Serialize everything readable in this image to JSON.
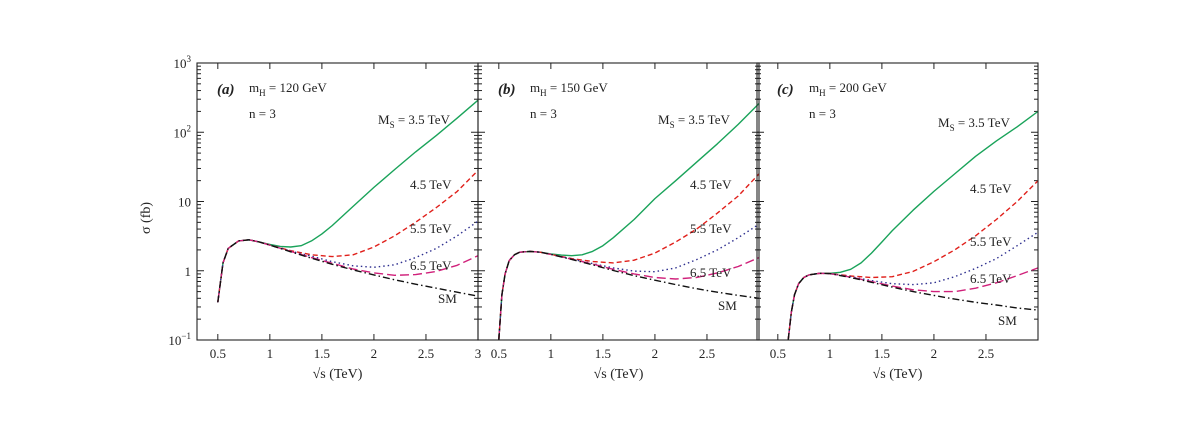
{
  "figure": {
    "ylabel": "σ (fb)",
    "xlabel": "√s (TeV)",
    "x_ticks": [
      "0.5",
      "1",
      "1.5",
      "2",
      "2.5",
      "3"
    ],
    "y_ticks": [
      {
        "base": "10",
        "exp": "−1"
      },
      {
        "base": "1",
        "exp": ""
      },
      {
        "base": "10",
        "exp": ""
      },
      {
        "base": "10",
        "exp": "2"
      },
      {
        "base": "10",
        "exp": "3"
      }
    ]
  },
  "colors": {
    "ms35": "#1aa35a",
    "ms45": "#e0201b",
    "ms55": "#2e2f8f",
    "ms65": "#d0207a",
    "sm": "#111111"
  },
  "chart_data": [
    {
      "type": "line",
      "panel": "(a)",
      "param1": "m",
      "param1_sub": "H",
      "param1_val": " = 120 GeV",
      "param2": "n = 3",
      "xlim": [
        0.3,
        3.0
      ],
      "ylim": [
        0.1,
        1000
      ],
      "yscale": "log",
      "labels": {
        "ms_prefix": "M",
        "ms_sub": "S",
        "ms_val": " = 3.5 TeV",
        "l45": "4.5 TeV",
        "l55": "5.5 TeV",
        "l65": "6.5 TeV",
        "lsm": "SM"
      },
      "series": [
        {
          "name": "M_S = 3.5 TeV",
          "style": "solid",
          "x": [
            0.5,
            0.55,
            0.6,
            0.7,
            0.8,
            0.9,
            1.0,
            1.1,
            1.2,
            1.3,
            1.4,
            1.5,
            1.6,
            1.8,
            2.0,
            2.2,
            2.4,
            2.6,
            2.8,
            3.0
          ],
          "y": [
            0.35,
            1.3,
            2.1,
            2.7,
            2.8,
            2.6,
            2.4,
            2.25,
            2.2,
            2.3,
            2.7,
            3.4,
            4.5,
            8.5,
            16,
            29,
            52,
            90,
            160,
            290
          ]
        },
        {
          "name": "4.5 TeV",
          "style": "dashed",
          "x": [
            0.5,
            0.55,
            0.6,
            0.7,
            0.8,
            0.9,
            1.0,
            1.2,
            1.4,
            1.6,
            1.8,
            2.0,
            2.2,
            2.4,
            2.6,
            2.8,
            3.0
          ],
          "y": [
            0.35,
            1.3,
            2.1,
            2.7,
            2.8,
            2.6,
            2.35,
            1.95,
            1.7,
            1.6,
            1.7,
            2.2,
            3.2,
            5.0,
            8.2,
            14,
            28
          ]
        },
        {
          "name": "5.5 TeV",
          "style": "dotted",
          "x": [
            0.5,
            0.55,
            0.6,
            0.7,
            0.8,
            0.9,
            1.0,
            1.2,
            1.4,
            1.6,
            1.8,
            2.0,
            2.2,
            2.4,
            2.6,
            2.8,
            3.0
          ],
          "y": [
            0.35,
            1.3,
            2.1,
            2.7,
            2.8,
            2.6,
            2.35,
            1.92,
            1.62,
            1.35,
            1.18,
            1.12,
            1.22,
            1.55,
            2.1,
            3.2,
            5.2
          ]
        },
        {
          "name": "6.5 TeV",
          "style": "longdash",
          "x": [
            0.5,
            0.55,
            0.6,
            0.7,
            0.8,
            0.9,
            1.0,
            1.2,
            1.4,
            1.6,
            1.8,
            2.0,
            2.2,
            2.4,
            2.6,
            2.8,
            3.0
          ],
          "y": [
            0.35,
            1.3,
            2.1,
            2.7,
            2.8,
            2.6,
            2.35,
            1.9,
            1.55,
            1.28,
            1.06,
            0.93,
            0.86,
            0.88,
            0.98,
            1.2,
            1.65
          ]
        },
        {
          "name": "SM",
          "style": "dashdot",
          "x": [
            0.5,
            0.55,
            0.6,
            0.7,
            0.8,
            0.9,
            1.0,
            1.2,
            1.4,
            1.6,
            1.8,
            2.0,
            2.2,
            2.4,
            2.6,
            2.8,
            3.0
          ],
          "y": [
            0.35,
            1.3,
            2.1,
            2.7,
            2.8,
            2.6,
            2.35,
            1.88,
            1.52,
            1.24,
            1.03,
            0.87,
            0.74,
            0.64,
            0.56,
            0.49,
            0.43
          ]
        }
      ]
    },
    {
      "type": "line",
      "panel": "(b)",
      "param1": "m",
      "param1_sub": "H",
      "param1_val": " = 150 GeV",
      "param2": "n = 3",
      "xlim": [
        0.3,
        3.0
      ],
      "ylim": [
        0.1,
        1000
      ],
      "yscale": "log",
      "labels": {
        "ms_prefix": "M",
        "ms_sub": "S",
        "ms_val": " = 3.5 TeV",
        "l45": "4.5 TeV",
        "l55": "5.5 TeV",
        "l65": "6.5 TeV",
        "lsm": "SM"
      },
      "series": [
        {
          "name": "M_S = 3.5 TeV",
          "style": "solid",
          "x": [
            0.5,
            0.53,
            0.56,
            0.6,
            0.65,
            0.7,
            0.8,
            0.9,
            1.0,
            1.1,
            1.2,
            1.3,
            1.4,
            1.5,
            1.6,
            1.8,
            2.0,
            2.2,
            2.4,
            2.6,
            2.8,
            3.0
          ],
          "y": [
            0.1,
            0.45,
            0.9,
            1.4,
            1.7,
            1.85,
            1.9,
            1.85,
            1.75,
            1.68,
            1.65,
            1.7,
            1.9,
            2.3,
            3.0,
            5.5,
            11,
            20,
            37,
            68,
            130,
            260
          ]
        },
        {
          "name": "4.5 TeV",
          "style": "dashed",
          "x": [
            0.5,
            0.53,
            0.56,
            0.6,
            0.65,
            0.7,
            0.8,
            0.9,
            1.0,
            1.2,
            1.4,
            1.6,
            1.8,
            2.0,
            2.2,
            2.4,
            2.6,
            2.8,
            3.0
          ],
          "y": [
            0.1,
            0.45,
            0.9,
            1.4,
            1.7,
            1.85,
            1.9,
            1.85,
            1.72,
            1.5,
            1.36,
            1.3,
            1.42,
            1.8,
            2.6,
            4.0,
            6.8,
            12,
            25
          ]
        },
        {
          "name": "5.5 TeV",
          "style": "dotted",
          "x": [
            0.5,
            0.53,
            0.56,
            0.6,
            0.65,
            0.7,
            0.8,
            0.9,
            1.0,
            1.2,
            1.4,
            1.6,
            1.8,
            2.0,
            2.2,
            2.4,
            2.6,
            2.8,
            3.0
          ],
          "y": [
            0.1,
            0.45,
            0.9,
            1.4,
            1.7,
            1.85,
            1.9,
            1.85,
            1.72,
            1.48,
            1.27,
            1.1,
            0.99,
            0.97,
            1.1,
            1.45,
            2.0,
            3.0,
            4.7
          ]
        },
        {
          "name": "6.5 TeV",
          "style": "longdash",
          "x": [
            0.5,
            0.53,
            0.56,
            0.6,
            0.65,
            0.7,
            0.8,
            0.9,
            1.0,
            1.2,
            1.4,
            1.6,
            1.8,
            2.0,
            2.2,
            2.4,
            2.6,
            2.8,
            3.0
          ],
          "y": [
            0.1,
            0.45,
            0.9,
            1.4,
            1.7,
            1.85,
            1.9,
            1.85,
            1.72,
            1.47,
            1.25,
            1.05,
            0.9,
            0.8,
            0.76,
            0.8,
            0.93,
            1.15,
            1.55
          ]
        },
        {
          "name": "SM",
          "style": "dashdot",
          "x": [
            0.5,
            0.53,
            0.56,
            0.6,
            0.65,
            0.7,
            0.8,
            0.9,
            1.0,
            1.2,
            1.4,
            1.6,
            1.8,
            2.0,
            2.2,
            2.4,
            2.6,
            2.8,
            3.0
          ],
          "y": [
            0.1,
            0.45,
            0.9,
            1.4,
            1.7,
            1.85,
            1.9,
            1.85,
            1.72,
            1.46,
            1.22,
            1.01,
            0.85,
            0.73,
            0.63,
            0.55,
            0.49,
            0.44,
            0.4
          ]
        }
      ]
    },
    {
      "type": "line",
      "panel": "(c)",
      "param1": "m",
      "param1_sub": "H",
      "param1_val": " = 200 GeV",
      "param2": "n = 3",
      "xlim": [
        0.3,
        3.0
      ],
      "ylim": [
        0.1,
        1000
      ],
      "yscale": "log",
      "labels": {
        "ms_prefix": "M",
        "ms_sub": "S",
        "ms_val": " = 3.5 TeV",
        "l45": "4.5 TeV",
        "l55": "5.5 TeV",
        "l65": "6.5 TeV",
        "lsm": "SM"
      },
      "series": [
        {
          "name": "M_S = 3.5 TeV",
          "style": "solid",
          "x": [
            0.6,
            0.63,
            0.66,
            0.7,
            0.75,
            0.8,
            0.9,
            1.0,
            1.1,
            1.2,
            1.3,
            1.4,
            1.5,
            1.6,
            1.8,
            2.0,
            2.2,
            2.4,
            2.6,
            2.8,
            3.0
          ],
          "y": [
            0.1,
            0.25,
            0.45,
            0.65,
            0.8,
            0.87,
            0.92,
            0.92,
            0.95,
            1.05,
            1.3,
            1.8,
            2.6,
            3.8,
            7.5,
            14,
            25,
            45,
            75,
            120,
            200
          ]
        },
        {
          "name": "4.5 TeV",
          "style": "dashed",
          "x": [
            0.6,
            0.63,
            0.66,
            0.7,
            0.75,
            0.8,
            0.9,
            1.0,
            1.2,
            1.4,
            1.6,
            1.8,
            2.0,
            2.2,
            2.4,
            2.6,
            2.8,
            3.0
          ],
          "y": [
            0.1,
            0.25,
            0.45,
            0.65,
            0.8,
            0.87,
            0.92,
            0.91,
            0.84,
            0.8,
            0.82,
            0.98,
            1.35,
            2.0,
            3.2,
            5.5,
            10,
            20
          ]
        },
        {
          "name": "5.5 TeV",
          "style": "dotted",
          "x": [
            0.6,
            0.63,
            0.66,
            0.7,
            0.75,
            0.8,
            0.9,
            1.0,
            1.2,
            1.4,
            1.6,
            1.8,
            2.0,
            2.2,
            2.4,
            2.6,
            2.8,
            3.0
          ],
          "y": [
            0.1,
            0.25,
            0.45,
            0.65,
            0.8,
            0.87,
            0.92,
            0.91,
            0.82,
            0.72,
            0.65,
            0.63,
            0.67,
            0.82,
            1.08,
            1.5,
            2.3,
            3.6
          ]
        },
        {
          "name": "6.5 TeV",
          "style": "longdash",
          "x": [
            0.6,
            0.63,
            0.66,
            0.7,
            0.75,
            0.8,
            0.9,
            1.0,
            1.2,
            1.4,
            1.6,
            1.8,
            2.0,
            2.2,
            2.4,
            2.6,
            2.8,
            3.0
          ],
          "y": [
            0.1,
            0.25,
            0.45,
            0.65,
            0.8,
            0.87,
            0.92,
            0.91,
            0.81,
            0.7,
            0.6,
            0.53,
            0.5,
            0.5,
            0.56,
            0.67,
            0.85,
            1.1
          ]
        },
        {
          "name": "SM",
          "style": "dashdot",
          "x": [
            0.6,
            0.63,
            0.66,
            0.7,
            0.75,
            0.8,
            0.9,
            1.0,
            1.2,
            1.4,
            1.6,
            1.8,
            2.0,
            2.2,
            2.4,
            2.6,
            2.8,
            3.0
          ],
          "y": [
            0.1,
            0.25,
            0.45,
            0.65,
            0.8,
            0.87,
            0.92,
            0.91,
            0.8,
            0.68,
            0.58,
            0.5,
            0.44,
            0.39,
            0.35,
            0.32,
            0.29,
            0.27
          ]
        }
      ]
    }
  ]
}
